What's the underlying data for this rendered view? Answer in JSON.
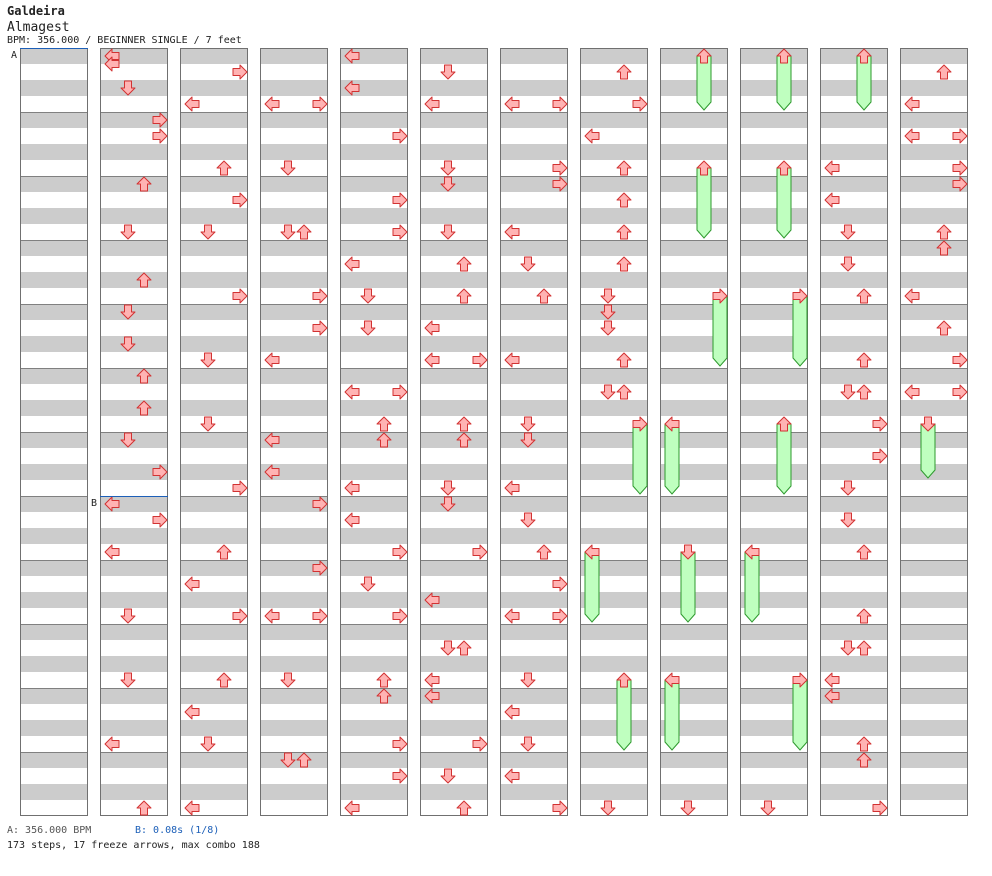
{
  "header": {
    "artist": "Galdeira",
    "title": "Almagest",
    "info": "BPM: 356.000 / BEGINNER SINGLE / 7 feet"
  },
  "markers": [
    {
      "label": "A",
      "column": 0,
      "beat": 0
    },
    {
      "label": "B",
      "column": 1,
      "beat": 28
    }
  ],
  "footer": {
    "a_text": "A: 356.000 BPM",
    "b_text": "B: 0.08s (1/8)",
    "stats": "173 steps, 17 freeze arrows, max combo 188"
  },
  "colors": {
    "stripe": "#cccccc",
    "border": "#707070",
    "arrow_fill": "#ffb3b3",
    "arrow_stroke": "#d23232",
    "freeze_fill": "#bfffbf",
    "freeze_stroke": "#2e9a2e",
    "marker_line": "#1c5fb8"
  },
  "chart_data": {
    "type": "table",
    "columns_count": 12,
    "beats_per_column": 48,
    "arrow_icons": [
      "left-arrow-icon",
      "down-arrow-icon",
      "up-arrow-icon",
      "right-arrow-icon"
    ],
    "notes": [
      [
        1,
        0,
        0
      ],
      [
        1,
        0.5,
        0
      ],
      [
        1,
        2,
        1
      ],
      [
        1,
        4,
        3
      ],
      [
        1,
        5,
        3
      ],
      [
        1,
        8,
        2
      ],
      [
        1,
        11,
        1
      ],
      [
        1,
        14,
        2
      ],
      [
        1,
        16,
        1
      ],
      [
        1,
        18,
        1
      ],
      [
        1,
        20,
        2
      ],
      [
        1,
        22,
        2
      ],
      [
        1,
        24,
        1
      ],
      [
        1,
        26,
        3
      ],
      [
        1,
        28,
        0
      ],
      [
        1,
        29,
        3
      ],
      [
        1,
        31,
        0
      ],
      [
        1,
        35,
        1
      ],
      [
        1,
        39,
        1
      ],
      [
        1,
        43,
        0
      ],
      [
        1,
        47,
        2
      ],
      [
        2,
        1,
        3
      ],
      [
        2,
        3,
        0
      ],
      [
        2,
        7,
        2
      ],
      [
        2,
        9,
        3
      ],
      [
        2,
        11,
        1
      ],
      [
        2,
        15,
        3
      ],
      [
        2,
        19,
        1
      ],
      [
        2,
        23,
        1
      ],
      [
        2,
        27,
        3
      ],
      [
        2,
        31,
        2
      ],
      [
        2,
        33,
        0
      ],
      [
        2,
        35,
        3
      ],
      [
        2,
        39,
        2
      ],
      [
        2,
        41,
        0
      ],
      [
        2,
        43,
        1
      ],
      [
        2,
        47,
        0
      ],
      [
        3,
        3,
        0
      ],
      [
        3,
        3,
        3
      ],
      [
        3,
        7,
        1
      ],
      [
        3,
        11,
        1
      ],
      [
        3,
        11,
        2
      ],
      [
        3,
        15,
        3
      ],
      [
        3,
        17,
        3
      ],
      [
        3,
        19,
        0
      ],
      [
        3,
        24,
        0
      ],
      [
        3,
        26,
        0
      ],
      [
        3,
        28,
        3
      ],
      [
        3,
        32,
        3
      ],
      [
        3,
        35,
        0
      ],
      [
        3,
        35,
        3
      ],
      [
        3,
        39,
        1
      ],
      [
        3,
        44,
        1
      ],
      [
        3,
        44,
        2
      ],
      [
        4,
        0,
        0
      ],
      [
        4,
        2,
        0
      ],
      [
        4,
        5,
        3
      ],
      [
        4,
        9,
        3
      ],
      [
        4,
        11,
        3
      ],
      [
        4,
        13,
        0
      ],
      [
        4,
        15,
        1
      ],
      [
        4,
        17,
        1
      ],
      [
        4,
        21,
        0
      ],
      [
        4,
        21,
        3
      ],
      [
        4,
        23,
        2
      ],
      [
        4,
        24,
        2
      ],
      [
        4,
        27,
        0
      ],
      [
        4,
        29,
        0
      ],
      [
        4,
        31,
        3
      ],
      [
        4,
        33,
        1
      ],
      [
        4,
        35,
        3
      ],
      [
        4,
        39,
        2
      ],
      [
        4,
        40,
        2
      ],
      [
        4,
        43,
        3
      ],
      [
        4,
        45,
        3
      ],
      [
        4,
        47,
        0
      ],
      [
        5,
        1,
        1
      ],
      [
        5,
        3,
        0
      ],
      [
        5,
        7,
        1
      ],
      [
        5,
        8,
        1
      ],
      [
        5,
        11,
        1
      ],
      [
        5,
        13,
        2
      ],
      [
        5,
        15,
        2
      ],
      [
        5,
        17,
        0
      ],
      [
        5,
        19,
        0
      ],
      [
        5,
        19,
        3
      ],
      [
        5,
        23,
        2
      ],
      [
        5,
        24,
        2
      ],
      [
        5,
        27,
        1
      ],
      [
        5,
        28,
        1
      ],
      [
        5,
        31,
        3
      ],
      [
        5,
        34,
        0
      ],
      [
        5,
        37,
        1
      ],
      [
        5,
        37,
        2
      ],
      [
        5,
        39,
        0
      ],
      [
        5,
        40,
        0
      ],
      [
        5,
        43,
        3
      ],
      [
        5,
        45,
        1
      ],
      [
        5,
        47,
        2
      ],
      [
        6,
        3,
        0
      ],
      [
        6,
        3,
        3
      ],
      [
        6,
        7,
        3
      ],
      [
        6,
        8,
        3
      ],
      [
        6,
        11,
        0
      ],
      [
        6,
        13,
        1
      ],
      [
        6,
        15,
        2
      ],
      [
        6,
        19,
        0
      ],
      [
        6,
        23,
        1
      ],
      [
        6,
        24,
        1
      ],
      [
        6,
        27,
        0
      ],
      [
        6,
        29,
        1
      ],
      [
        6,
        31,
        2
      ],
      [
        6,
        33,
        3
      ],
      [
        6,
        35,
        0
      ],
      [
        6,
        35,
        3
      ],
      [
        6,
        39,
        1
      ],
      [
        6,
        41,
        0
      ],
      [
        6,
        43,
        1
      ],
      [
        6,
        45,
        0
      ],
      [
        6,
        47,
        3
      ],
      [
        7,
        1,
        2
      ],
      [
        7,
        3,
        3
      ],
      [
        7,
        5,
        0
      ],
      [
        7,
        7,
        2
      ],
      [
        7,
        9,
        2
      ],
      [
        7,
        11,
        2
      ],
      [
        7,
        13,
        2
      ],
      [
        7,
        15,
        1
      ],
      [
        7,
        16,
        1
      ],
      [
        7,
        17,
        1
      ],
      [
        7,
        19,
        2
      ],
      [
        7,
        21,
        1
      ],
      [
        7,
        21,
        2
      ],
      [
        7,
        47,
        1
      ],
      [
        8,
        47,
        1
      ],
      [
        9,
        47,
        1
      ],
      [
        10,
        7,
        0
      ],
      [
        10,
        9,
        0
      ],
      [
        10,
        11,
        1
      ],
      [
        10,
        13,
        1
      ],
      [
        10,
        15,
        2
      ],
      [
        10,
        19,
        2
      ],
      [
        10,
        21,
        1
      ],
      [
        10,
        21,
        2
      ],
      [
        10,
        23,
        3
      ],
      [
        10,
        25,
        3
      ],
      [
        10,
        27,
        1
      ],
      [
        10,
        29,
        1
      ],
      [
        10,
        31,
        2
      ],
      [
        10,
        35,
        2
      ],
      [
        10,
        37,
        1
      ],
      [
        10,
        37,
        2
      ],
      [
        10,
        39,
        0
      ],
      [
        10,
        40,
        0
      ],
      [
        10,
        43,
        2
      ],
      [
        10,
        44,
        2
      ],
      [
        10,
        47,
        3
      ],
      [
        11,
        1,
        2
      ],
      [
        11,
        3,
        0
      ],
      [
        11,
        5,
        0
      ],
      [
        11,
        5,
        3
      ],
      [
        11,
        7,
        3
      ],
      [
        11,
        8,
        3
      ],
      [
        11,
        11,
        2
      ],
      [
        11,
        12,
        2
      ],
      [
        11,
        15,
        0
      ],
      [
        11,
        17,
        2
      ],
      [
        11,
        19,
        3
      ],
      [
        11,
        21,
        0
      ],
      [
        11,
        21,
        3
      ]
    ],
    "freezes": [
      [
        8,
        0,
        3,
        2
      ],
      [
        9,
        0,
        3,
        2
      ],
      [
        10,
        0,
        3,
        2
      ],
      [
        8,
        7,
        11,
        2
      ],
      [
        9,
        7,
        11,
        2
      ],
      [
        8,
        15,
        19,
        3
      ],
      [
        9,
        15,
        19,
        3
      ],
      [
        7,
        23,
        27,
        3
      ],
      [
        8,
        23,
        27,
        0
      ],
      [
        9,
        23,
        27,
        2
      ],
      [
        11,
        23,
        26,
        1
      ],
      [
        7,
        31,
        35,
        0
      ],
      [
        8,
        31,
        35,
        1
      ],
      [
        9,
        31,
        35,
        0
      ],
      [
        7,
        39,
        43,
        2
      ],
      [
        8,
        39,
        43,
        0
      ],
      [
        9,
        39,
        43,
        3
      ]
    ]
  }
}
